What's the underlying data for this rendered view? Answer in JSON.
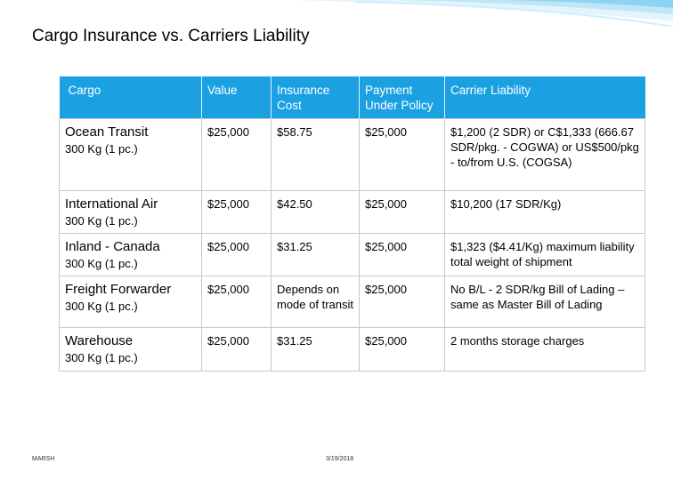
{
  "title": "Cargo Insurance vs. Carriers Liability",
  "table": {
    "headers": [
      "Cargo",
      "Value",
      "Insurance Cost",
      "Payment Under Policy",
      "Carrier Liability"
    ],
    "rows": [
      {
        "cargo": "Ocean Transit",
        "weight": "300 Kg (1 pc.)",
        "value": "$25,000",
        "insurance_cost": "$58.75",
        "payment": "$25,000",
        "carrier_liability": "$1,200 (2 SDR) or C$1,333 (666.67 SDR/pkg. - COGWA) or US$500/pkg - to/from U.S. (COGSA)"
      },
      {
        "cargo": "International Air",
        "weight": "300 Kg (1 pc.)",
        "value": "$25,000",
        "insurance_cost": "$42.50",
        "payment": "$25,000",
        "carrier_liability": "$10,200 (17 SDR/Kg)"
      },
      {
        "cargo": "Inland - Canada",
        "weight": "300 Kg (1 pc.)",
        "value": "$25,000",
        "insurance_cost": "$31.25",
        "payment": "$25,000",
        "carrier_liability": "$1,323 ($4.41/Kg) maximum liability total weight of shipment"
      },
      {
        "cargo": "Freight Forwarder",
        "weight": "300 Kg (1 pc.)",
        "value": "$25,000",
        "insurance_cost": "Depends on mode of transit",
        "payment": "$25,000",
        "carrier_liability": "No B/L - 2 SDR/kg Bill of Lading – same as Master Bill of Lading"
      },
      {
        "cargo": "Warehouse",
        "weight": "300 Kg (1 pc.)",
        "value": "$25,000",
        "insurance_cost": "$31.25",
        "payment": "$25,000",
        "carrier_liability": "2 months storage charges"
      }
    ]
  },
  "footer": {
    "brand": "MARSH",
    "date": "3/19/2018"
  },
  "colors": {
    "header_bg": "#1ba1e2",
    "accent_light": "#8fd3f4",
    "accent_pale": "#d4eefb"
  }
}
